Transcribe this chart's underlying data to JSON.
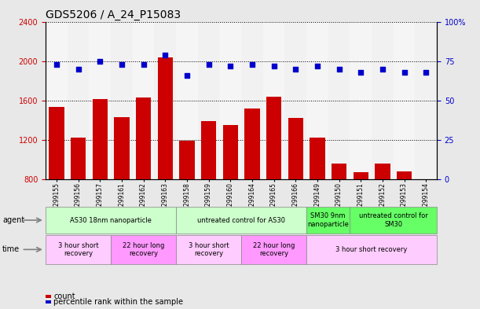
{
  "title": "GDS5206 / A_24_P15083",
  "samples": [
    "GSM1299155",
    "GSM1299156",
    "GSM1299157",
    "GSM1299161",
    "GSM1299162",
    "GSM1299163",
    "GSM1299158",
    "GSM1299159",
    "GSM1299160",
    "GSM1299164",
    "GSM1299165",
    "GSM1299166",
    "GSM1299149",
    "GSM1299150",
    "GSM1299151",
    "GSM1299152",
    "GSM1299153",
    "GSM1299154"
  ],
  "counts": [
    1530,
    1220,
    1610,
    1430,
    1630,
    2040,
    1190,
    1390,
    1350,
    1520,
    1640,
    1420,
    1220,
    960,
    870,
    960,
    880,
    800
  ],
  "percentiles": [
    73,
    70,
    75,
    73,
    73,
    79,
    66,
    73,
    72,
    73,
    72,
    70,
    72,
    70,
    68,
    70,
    68,
    68
  ],
  "bar_color": "#cc0000",
  "dot_color": "#0000cc",
  "ylim_left": [
    800,
    2400
  ],
  "ylim_right": [
    0,
    100
  ],
  "yticks_left": [
    800,
    1200,
    1600,
    2000,
    2400
  ],
  "yticks_right": [
    0,
    25,
    50,
    75,
    100
  ],
  "agent_groups": [
    {
      "label": "AS30 18nm nanoparticle",
      "start": 0,
      "end": 5,
      "color": "#ccffcc"
    },
    {
      "label": "untreated control for AS30",
      "start": 6,
      "end": 11,
      "color": "#ccffcc"
    },
    {
      "label": "SM30 9nm\nnanoparticle",
      "start": 12,
      "end": 13,
      "color": "#66ff66"
    },
    {
      "label": "untreated control for\nSM30",
      "start": 14,
      "end": 17,
      "color": "#66ff66"
    }
  ],
  "time_groups": [
    {
      "label": "3 hour short\nrecovery",
      "start": 0,
      "end": 2,
      "color": "#ffccff"
    },
    {
      "label": "22 hour long\nrecovery",
      "start": 3,
      "end": 5,
      "color": "#ff99ff"
    },
    {
      "label": "3 hour short\nrecovery",
      "start": 6,
      "end": 8,
      "color": "#ffccff"
    },
    {
      "label": "22 hour long\nrecovery",
      "start": 9,
      "end": 11,
      "color": "#ff99ff"
    },
    {
      "label": "3 hour short recovery",
      "start": 12,
      "end": 17,
      "color": "#ffccff"
    }
  ],
  "background_color": "#e8e8e8",
  "plot_bg": "#ffffff",
  "title_fontsize": 10,
  "tick_fontsize": 7,
  "ann_fontsize": 7,
  "label_fontsize": 7
}
